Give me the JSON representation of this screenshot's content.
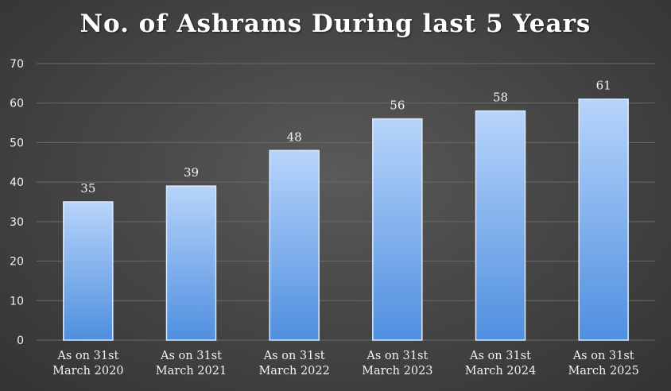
{
  "chart_data": {
    "type": "bar",
    "title": "No. of Ashrams During last 5 Years",
    "categories": [
      [
        "As on 31st",
        "March 2020"
      ],
      [
        "As on 31st",
        "March 2021"
      ],
      [
        "As on 31st",
        "March 2022"
      ],
      [
        "As on 31st",
        "March 2023"
      ],
      [
        "As on 31st",
        "March 2024"
      ],
      [
        "As on 31st",
        "March 2025"
      ]
    ],
    "values": [
      35,
      39,
      48,
      56,
      58,
      61
    ],
    "data_labels": [
      "35",
      "39",
      "48",
      "56",
      "58",
      "61"
    ],
    "yticks": [
      "0",
      "10",
      "20",
      "30",
      "40",
      "50",
      "60",
      "70"
    ],
    "ylim": [
      0,
      70
    ],
    "grid": true,
    "legend": "none",
    "colors": {
      "bar_top": "#b7d4fb",
      "bar_bottom": "#4f8fdf",
      "bar_edge": "#dde9fb",
      "gridline": "#6a6a6a",
      "text": "#f2f2f2"
    }
  }
}
